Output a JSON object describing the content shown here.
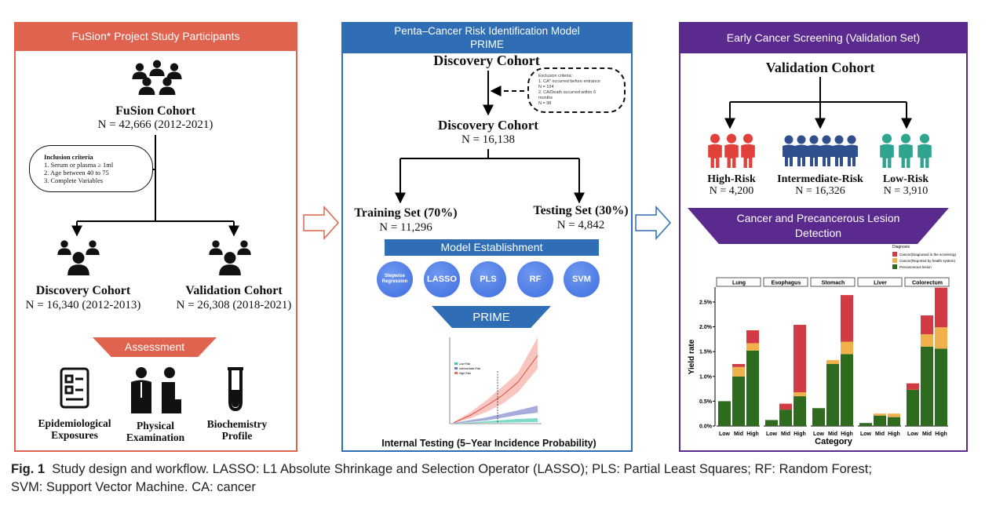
{
  "left_panel": {
    "title": "FuSion* Project Study Participants",
    "color": "#e0634f",
    "fusion_cohort": {
      "name": "FuSion Cohort",
      "n": "N = 42,666 (2012-2021)"
    },
    "inclusion": {
      "title": "Inclusion criteria",
      "items": [
        "1.  Serum or plasma ≥ 1ml",
        "2.  Age between 40 to 75",
        "3.  Complete Variables"
      ]
    },
    "discovery": {
      "name": "Discovery Cohort",
      "n": "N = 16,340 (2012-2013)"
    },
    "validation": {
      "name": "Validation Cohort",
      "n": "N = 26,308 (2018-2021)"
    },
    "assessment": "Assessment",
    "assessments": [
      {
        "icon": "checklist-icon",
        "line1": "Epidemiological",
        "line2": "Exposures"
      },
      {
        "icon": "doctor-patient-icon",
        "line1": "Physical",
        "line2": "Examination"
      },
      {
        "icon": "test-tube-icon",
        "line1": "Biochemistry",
        "line2": "Profile"
      }
    ]
  },
  "middle_panel": {
    "title_line1": "Penta–Cancer Risk Identification Model",
    "title_line2": "PRIME",
    "color": "#2f6db5",
    "discovery_top": "Discovery Cohort",
    "exclusion": {
      "title": "Exclusion criteria:",
      "lines": [
        "1.  CA* occurred before entrance",
        "N = 104",
        "2. CA/Death occurred within 6",
        "months",
        "N = 98"
      ]
    },
    "discovery": {
      "name": "Discovery Cohort",
      "n": "N = 16,138"
    },
    "training": {
      "name": "Training Set (70%)",
      "n": "N = 11,296"
    },
    "testing": {
      "name": "Testing Set (30%)",
      "n": "N = 4,842"
    },
    "model_establishment": "Model Establishment",
    "models": [
      "Stepwise Regression",
      "LASSO",
      "PLS",
      "RF",
      "SVM"
    ],
    "prime": "PRIME",
    "inner_chart": {
      "legend": [
        "Low Risk",
        "Intermediate Risk",
        "High Risk"
      ],
      "colors": [
        "#3cc7a8",
        "#6b78c4",
        "#ee6b5e"
      ]
    },
    "caption": "Internal Testing (5–Year Incidence Probability)"
  },
  "right_panel": {
    "title": "Early Cancer Screening (Validation Set)",
    "color": "#5a2a8e",
    "validation": "Validation Cohort",
    "groups": [
      {
        "name": "High-Risk",
        "n": "N = 4,200",
        "color": "#e2403a"
      },
      {
        "name": "Intermediate-Risk",
        "n": "N = 16,326",
        "color": "#2f4f8f"
      },
      {
        "name": "Low-Risk",
        "n": "N = 3,910",
        "color": "#2fa58f"
      }
    ],
    "detection_line1": "Cancer and Precancerous Lesion",
    "detection_line2": "Detection"
  },
  "chart_data": {
    "type": "bar",
    "stacked": true,
    "facets": [
      "Lung",
      "Esophagus",
      "Stomach",
      "Liver",
      "Colorectum"
    ],
    "categories": [
      "Low",
      "Mid",
      "High"
    ],
    "xlabel": "Category",
    "ylabel": "Yield rate",
    "ylim": [
      0,
      2.8
    ],
    "yticks": [
      "0.0%",
      "0.5%",
      "1.0%",
      "1.5%",
      "2.0%",
      "2.5%"
    ],
    "legend_title": "Diagnosis",
    "legend_position": "top-right",
    "series": [
      {
        "name": "Precancerous lesion",
        "color": "#2e6b1f",
        "values": [
          [
            0.5,
            1.0,
            1.52
          ],
          [
            0.12,
            0.33,
            0.6
          ],
          [
            0.36,
            1.25,
            1.45
          ],
          [
            0.06,
            0.21,
            0.18
          ],
          [
            0.73,
            1.6,
            1.56
          ]
        ]
      },
      {
        "name": "Cancer(Reported by health system)",
        "color": "#f0b04a",
        "values": [
          [
            0,
            0.19,
            0.15
          ],
          [
            0,
            0,
            0.08
          ],
          [
            0,
            0.08,
            0.25
          ],
          [
            0,
            0.04,
            0.07
          ],
          [
            0,
            0.25,
            0.43
          ]
        ]
      },
      {
        "name": "Cancer(Diagnosed in the screening)",
        "color": "#d23a44",
        "values": [
          [
            0,
            0.06,
            0.26
          ],
          [
            0,
            0.12,
            1.36
          ],
          [
            0,
            0,
            0.94
          ],
          [
            0,
            0,
            0
          ],
          [
            0.13,
            0.38,
            0.8
          ]
        ]
      }
    ]
  },
  "caption": {
    "label": "Fig. 1",
    "line1": "Study design and workflow. LASSO: L1 Absolute Shrinkage and Selection Operator (LASSO); PLS: Partial Least Squares; RF: Random Forest;",
    "line2": "SVM: Support Vector Machine. CA: cancer"
  }
}
